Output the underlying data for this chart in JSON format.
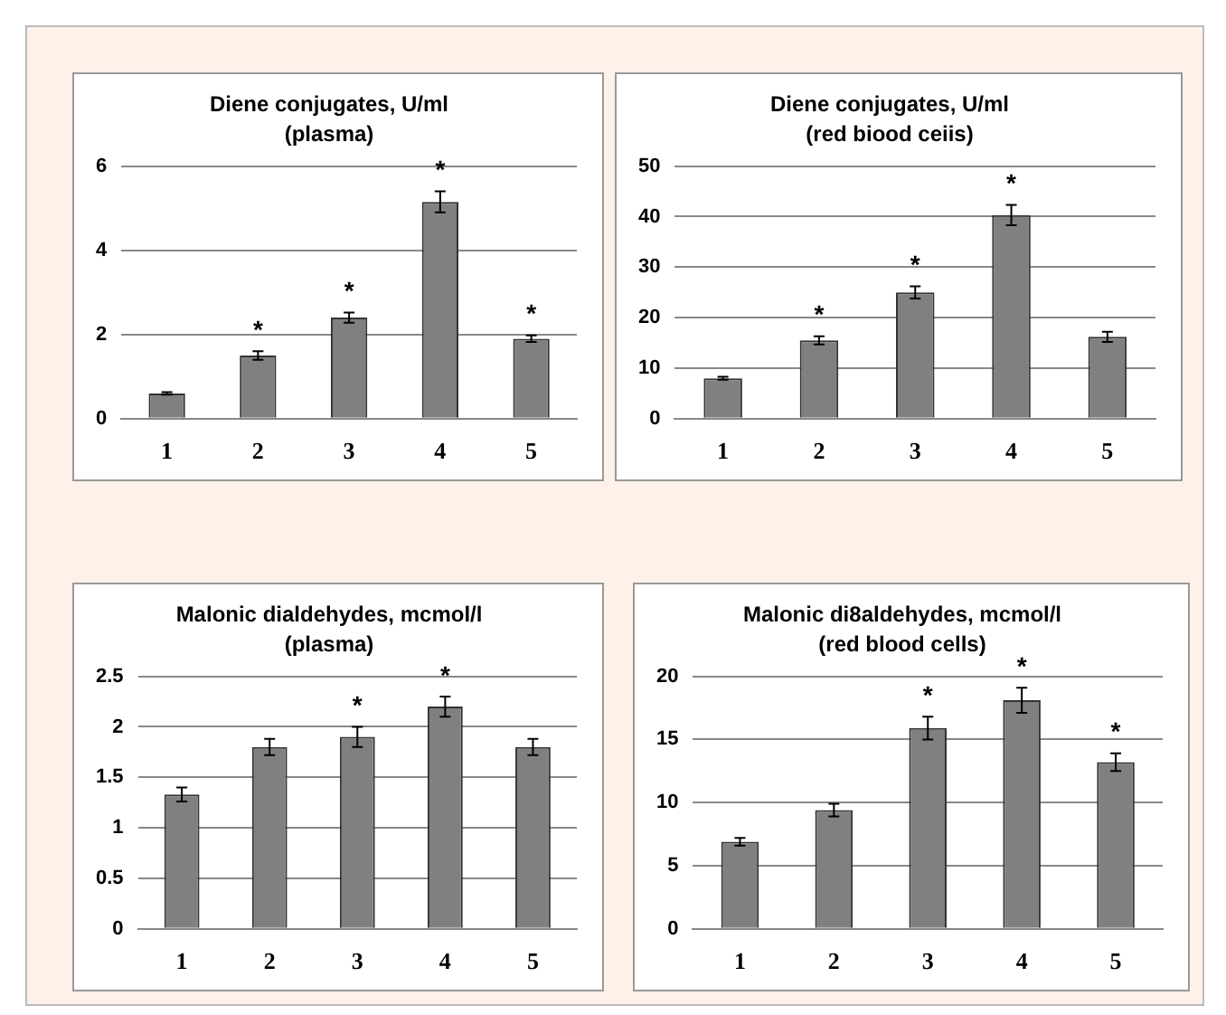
{
  "chart_data": [
    {
      "type": "bar",
      "title": "Diene conjugates, U/ml",
      "subtitle": "(plasma)",
      "categories": [
        "1",
        "2",
        "3",
        "4",
        "5"
      ],
      "values": [
        0.6,
        1.5,
        2.4,
        5.15,
        1.9
      ],
      "errors": [
        0.03,
        0.1,
        0.12,
        0.25,
        0.08
      ],
      "color": "#808080",
      "ylim": [
        0,
        6
      ],
      "yticks": [
        0,
        2,
        4,
        6
      ],
      "grid": "y",
      "annotations": [
        {
          "text": "*",
          "x": "2",
          "y": 1.5
        },
        {
          "text": "*",
          "x": "3",
          "y": 2.4
        },
        {
          "text": "*",
          "x": "4",
          "y": 5.15
        },
        {
          "text": "*",
          "x": "5",
          "y": 1.9
        }
      ]
    },
    {
      "type": "bar",
      "title": "Diene conjugates, U/ml",
      "subtitle": "(red biood ceiis)",
      "categories": [
        "1",
        "2",
        "3",
        "4",
        "5"
      ],
      "values": [
        8,
        15.5,
        25,
        40.3,
        16.2
      ],
      "errors": [
        0.3,
        0.8,
        1.2,
        2,
        1
      ],
      "color": "#808080",
      "ylim": [
        0,
        50
      ],
      "yticks": [
        0,
        10,
        20,
        30,
        40,
        50
      ],
      "grid": "y",
      "annotations": [
        {
          "text": "*",
          "x": "2",
          "y": 15.5
        },
        {
          "text": "*",
          "x": "3",
          "y": 25
        },
        {
          "text": "*",
          "x": "4",
          "y": 40.3
        }
      ]
    },
    {
      "type": "bar",
      "title": "Malonic dialdehydes, mcmol/l",
      "subtitle": "(plasma)",
      "categories": [
        "1",
        "2",
        "3",
        "4",
        "5"
      ],
      "values": [
        1.33,
        1.8,
        1.9,
        2.2,
        1.8
      ],
      "errors": [
        0.07,
        0.08,
        0.1,
        0.1,
        0.08
      ],
      "color": "#808080",
      "ylim": [
        0,
        2.5
      ],
      "yticks": [
        0,
        0.5,
        1,
        1.5,
        2,
        2.5
      ],
      "grid": "y",
      "annotations": [
        {
          "text": "*",
          "x": "3",
          "y": 1.9
        },
        {
          "text": "*",
          "x": "4",
          "y": 2.2
        }
      ]
    },
    {
      "type": "bar",
      "title": "Malonic di8aldehydes, mcmol/l",
      "subtitle": "(red blood cells)",
      "categories": [
        "1",
        "2",
        "3",
        "4",
        "5"
      ],
      "values": [
        6.9,
        9.4,
        15.9,
        18.1,
        13.2
      ],
      "errors": [
        0.3,
        0.5,
        0.9,
        1,
        0.7
      ],
      "color": "#808080",
      "ylim": [
        0,
        20
      ],
      "yticks": [
        0,
        5,
        10,
        15,
        20
      ],
      "grid": "y",
      "annotations": [
        {
          "text": "*",
          "x": "3",
          "y": 15.9
        },
        {
          "text": "*",
          "x": "4",
          "y": 18.1
        },
        {
          "text": "*",
          "x": "5",
          "y": 13.2
        }
      ]
    }
  ]
}
